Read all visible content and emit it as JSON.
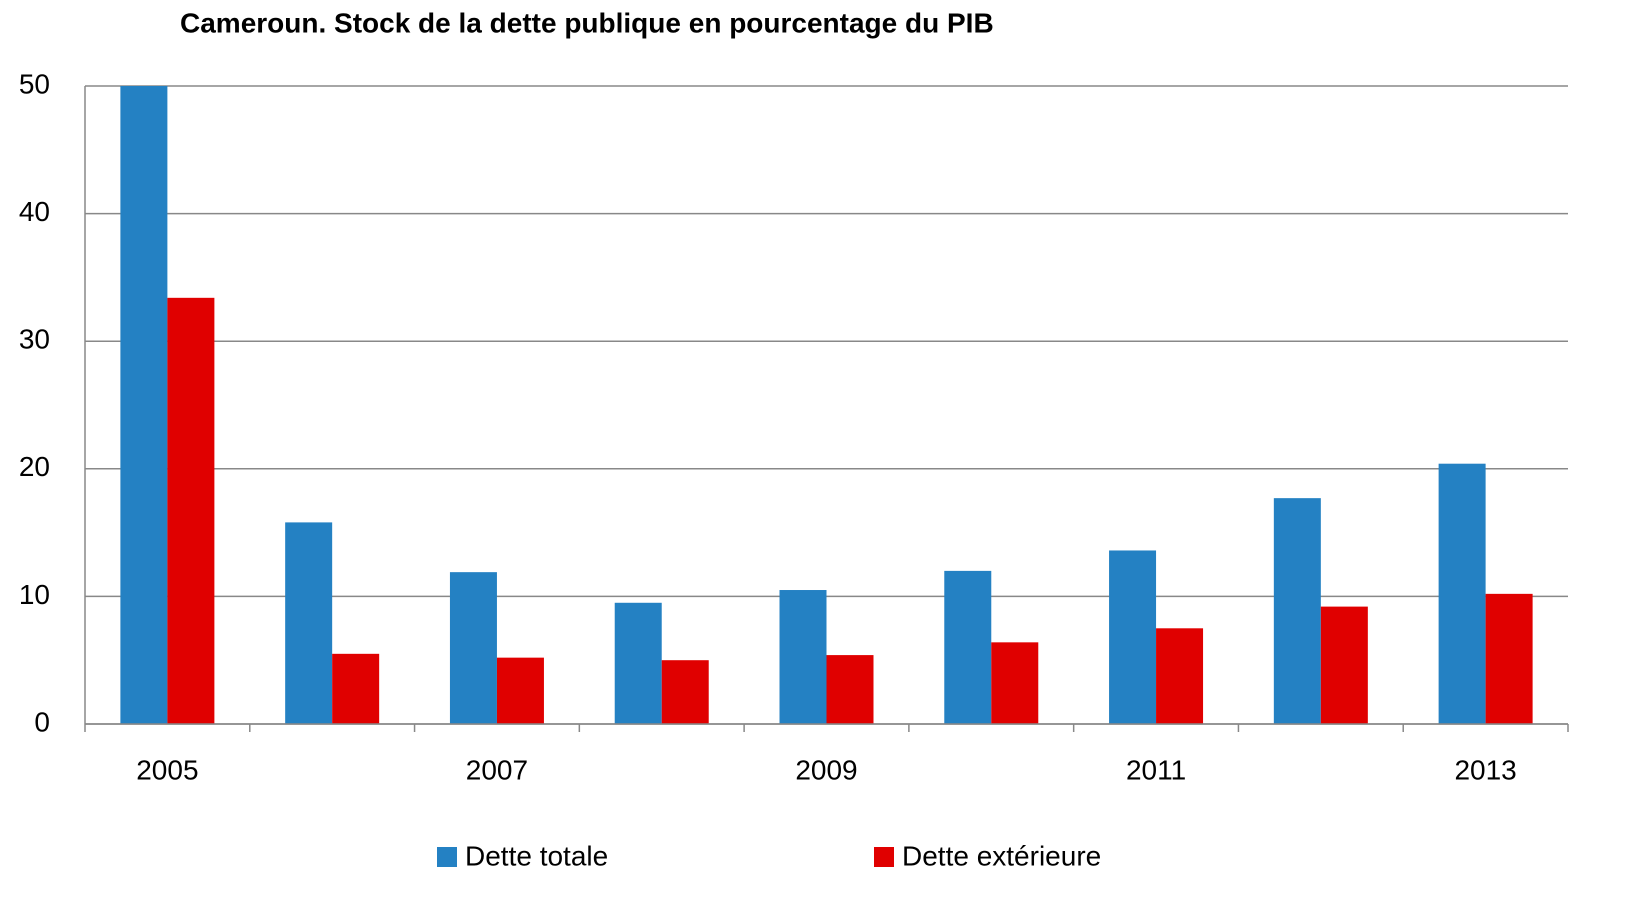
{
  "chart_data": {
    "type": "bar",
    "title": "Cameroun. Stock de la dette publique en pourcentage du PIB",
    "categories": [
      "2005",
      null,
      "2007",
      null,
      "2009",
      null,
      "2011",
      null,
      "2013"
    ],
    "series": [
      {
        "name": "Dette totale",
        "color": "#2481c3",
        "values": [
          50,
          15.8,
          11.9,
          9.5,
          10.5,
          12.0,
          13.6,
          17.7,
          20.4
        ]
      },
      {
        "name": "Dette extérieure",
        "color": "#e00000",
        "values": [
          33.4,
          5.5,
          5.2,
          5.0,
          5.4,
          6.4,
          7.5,
          9.2,
          10.2
        ]
      }
    ],
    "ylim": [
      0,
      50
    ],
    "yticks": [
      0,
      10,
      20,
      30,
      40,
      50
    ],
    "grid": true
  }
}
